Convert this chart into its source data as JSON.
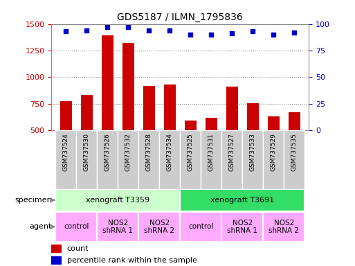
{
  "title": "GDS5187 / ILMN_1795836",
  "samples": [
    "GSM737524",
    "GSM737530",
    "GSM737526",
    "GSM737532",
    "GSM737528",
    "GSM737534",
    "GSM737525",
    "GSM737531",
    "GSM737527",
    "GSM737533",
    "GSM737529",
    "GSM737535"
  ],
  "bar_values": [
    775,
    835,
    1390,
    1320,
    920,
    930,
    590,
    620,
    910,
    755,
    630,
    670
  ],
  "dot_values": [
    93,
    94,
    97,
    97,
    94,
    94,
    90,
    90,
    91,
    93,
    90,
    92
  ],
  "bar_color": "#cc0000",
  "dot_color": "#0000cc",
  "ylim_left": [
    500,
    1500
  ],
  "ylim_right": [
    0,
    100
  ],
  "yticks_left": [
    500,
    750,
    1000,
    1250,
    1500
  ],
  "yticks_right": [
    0,
    25,
    50,
    75,
    100
  ],
  "specimen_groups": [
    {
      "label": "xenograft T3359",
      "start": 0,
      "end": 6,
      "color": "#ccffcc"
    },
    {
      "label": "xenograft T3691",
      "start": 6,
      "end": 12,
      "color": "#33dd66"
    }
  ],
  "agent_groups": [
    {
      "label": "control",
      "start": 0,
      "end": 2
    },
    {
      "label": "NOS2\nshRNA 1",
      "start": 2,
      "end": 4
    },
    {
      "label": "NOS2\nshRNA 2",
      "start": 4,
      "end": 6
    },
    {
      "label": "control",
      "start": 6,
      "end": 8
    },
    {
      "label": "NOS2\nshRNA 1",
      "start": 8,
      "end": 10
    },
    {
      "label": "NOS2\nshRNA 2",
      "start": 10,
      "end": 12
    }
  ],
  "agent_color": "#ffaaff",
  "specimen_label": "specimen",
  "agent_label": "agent",
  "legend_count": "count",
  "legend_percentile": "percentile rank within the sample",
  "bar_width": 0.55,
  "grid_color": "#888888",
  "tick_label_color_left": "#cc0000",
  "tick_label_color_right": "#0000cc",
  "background_color": "#ffffff",
  "xticklabel_bg": "#cccccc",
  "xticklabel_fontsize": 6.5,
  "title_fontsize": 10
}
